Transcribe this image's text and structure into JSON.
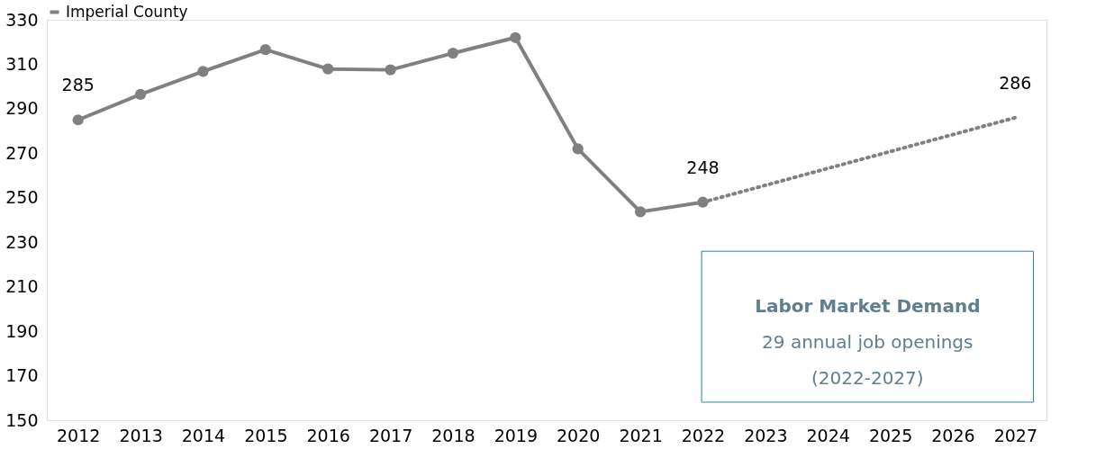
{
  "chart_data": {
    "type": "line",
    "categories": [
      "2012",
      "2013",
      "2014",
      "2015",
      "2016",
      "2017",
      "2018",
      "2019",
      "2020",
      "2021",
      "2022",
      "2023",
      "2024",
      "2025",
      "2026",
      "2027"
    ],
    "series": [
      {
        "name": "Imperial County",
        "color": "#808080",
        "marker": "circle",
        "line_style": "solid",
        "values": [
          285,
          296.5,
          306.8,
          316.6,
          307.9,
          307.5,
          315,
          322,
          272,
          243.7,
          248,
          null,
          null,
          null,
          null,
          null
        ],
        "value_labels": [
          "285",
          null,
          null,
          null,
          null,
          null,
          null,
          null,
          null,
          null,
          "248",
          null,
          null,
          null,
          null,
          null
        ]
      },
      {
        "color": "#808080",
        "line_style": "dotted",
        "values": [
          null,
          null,
          null,
          null,
          null,
          null,
          null,
          null,
          null,
          null,
          248,
          null,
          null,
          null,
          null,
          286
        ],
        "value_labels": [
          null,
          null,
          null,
          null,
          null,
          null,
          null,
          null,
          null,
          null,
          null,
          null,
          null,
          null,
          null,
          "286"
        ]
      }
    ],
    "ylim": [
      150,
      330
    ],
    "yticks": [
      150,
      170,
      190,
      210,
      230,
      250,
      270,
      290,
      310,
      330
    ],
    "grid": false,
    "legend": "top",
    "annotations": [
      "Labor Market Demand",
      "29 annual job openings",
      "(2022-2027)"
    ]
  }
}
